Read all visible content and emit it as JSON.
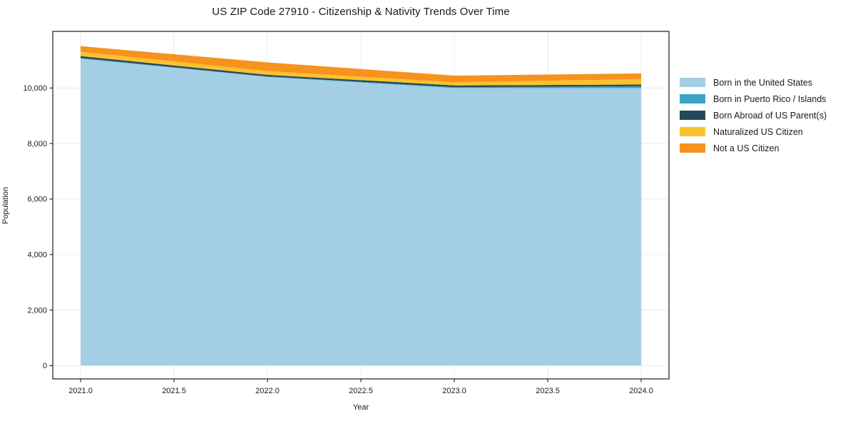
{
  "figure": {
    "background": "#ffffff",
    "spine_color": "#2b2b2b",
    "grid_color": "#ebebeb",
    "tick_label_color": "#1a1a1a"
  },
  "chart_data": {
    "type": "area",
    "stacked": true,
    "title": "US ZIP Code 27910 - Citizenship & Nativity Trends Over Time",
    "xlabel": "Year",
    "ylabel": "Population",
    "x": [
      2021,
      2022,
      2023,
      2024
    ],
    "series": [
      {
        "name": "Born in the United States",
        "color": "#a4cee3",
        "values": [
          11060,
          10400,
          10000,
          10000
        ]
      },
      {
        "name": "Born in Puerto Rico / Islands",
        "color": "#3aa4c4",
        "values": [
          20,
          15,
          30,
          65
        ]
      },
      {
        "name": "Born Abroad of US Parent(s)",
        "color": "#25485c",
        "values": [
          70,
          60,
          65,
          60
        ]
      },
      {
        "name": "Naturalized US Citizen",
        "color": "#fbc12e",
        "values": [
          155,
          135,
          110,
          195
        ]
      },
      {
        "name": "Not a US Citizen",
        "color": "#f6931e",
        "values": [
          205,
          315,
          240,
          205
        ]
      }
    ],
    "x_ticks": [
      "2021.0",
      "2021.5",
      "2022.0",
      "2022.5",
      "2023.0",
      "2023.5",
      "2024.0"
    ],
    "x_tick_values": [
      2021,
      2021.5,
      2022,
      2022.5,
      2023,
      2023.5,
      2024
    ],
    "y_ticks": [
      "0",
      "2,000",
      "4,000",
      "6,000",
      "8,000",
      "10,000"
    ],
    "y_tick_values": [
      0,
      2000,
      4000,
      6000,
      8000,
      10000
    ],
    "xlim": [
      2020.851,
      2024.149
    ],
    "ylim": [
      -480,
      12040
    ],
    "grid": true,
    "legend_position": "right"
  }
}
